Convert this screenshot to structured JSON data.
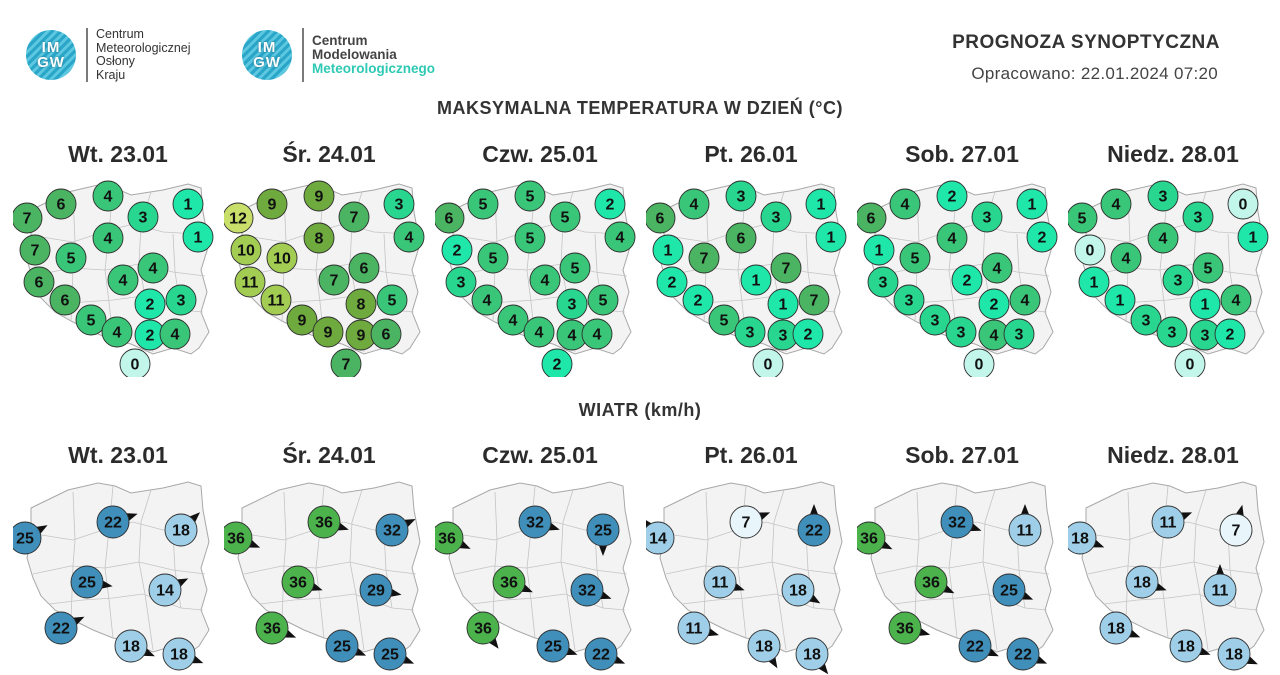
{
  "header": {
    "logo1": {
      "badge": "IM GW",
      "lines": [
        "Centrum",
        "Meteorologicznej",
        "Osłony",
        "Kraju"
      ]
    },
    "logo2": {
      "badge": "IM GW",
      "line1": "Centrum",
      "line2": "Modelowania",
      "line3": "Meteorologicznego"
    },
    "title": "PROGNOZA SYNOPTYCZNA",
    "issued": "Opracowano: 22.01.2024 07:20"
  },
  "temp_section": {
    "title": "MAKSYMALNA TEMPERATURA W DZIEŃ (°C)",
    "days": [
      {
        "label": "Wt. 23.01",
        "values": [
          6,
          4,
          1,
          7,
          3,
          1,
          7,
          5,
          4,
          6,
          4,
          4,
          6,
          2,
          3,
          5,
          4,
          2,
          4,
          0
        ]
      },
      {
        "label": "Śr. 24.01",
        "values": [
          9,
          9,
          3,
          12,
          7,
          4,
          10,
          10,
          8,
          11,
          7,
          6,
          11,
          8,
          5,
          9,
          9,
          9,
          6,
          7
        ]
      },
      {
        "label": "Czw. 25.01",
        "values": [
          5,
          5,
          2,
          6,
          5,
          4,
          2,
          5,
          5,
          3,
          4,
          5,
          4,
          3,
          5,
          4,
          4,
          4,
          4,
          2
        ]
      },
      {
        "label": "Pt. 26.01",
        "values": [
          4,
          3,
          1,
          6,
          3,
          1,
          1,
          7,
          6,
          2,
          1,
          7,
          2,
          1,
          7,
          5,
          3,
          3,
          2,
          0
        ]
      },
      {
        "label": "Sob. 27.01",
        "values": [
          4,
          2,
          1,
          6,
          3,
          2,
          1,
          5,
          4,
          3,
          2,
          4,
          3,
          2,
          4,
          3,
          3,
          4,
          3,
          0
        ]
      },
      {
        "label": "Niedz. 28.01",
        "values": [
          4,
          3,
          0,
          5,
          3,
          1,
          0,
          4,
          4,
          1,
          3,
          5,
          1,
          1,
          4,
          3,
          3,
          3,
          2,
          0
        ]
      }
    ]
  },
  "wind_section": {
    "title": "WIATR (km/h)",
    "days": [
      {
        "label": "Wt. 23.01",
        "values": [
          25,
          22,
          18,
          25,
          14,
          22,
          18,
          18
        ]
      },
      {
        "label": "Śr. 24.01",
        "values": [
          36,
          36,
          32,
          36,
          29,
          36,
          25,
          25
        ]
      },
      {
        "label": "Czw. 25.01",
        "values": [
          36,
          32,
          25,
          36,
          32,
          36,
          25,
          22
        ]
      },
      {
        "label": "Pt. 26.01",
        "values": [
          14,
          7,
          22,
          11,
          18,
          11,
          18,
          18
        ]
      },
      {
        "label": "Sob. 27.01",
        "values": [
          36,
          32,
          11,
          36,
          25,
          36,
          22,
          22
        ]
      },
      {
        "label": "Niedz. 28.01",
        "values": [
          18,
          11,
          7,
          18,
          11,
          18,
          18,
          18
        ]
      }
    ]
  },
  "colors": {
    "map_fill": "#f3f3f3",
    "map_border": "#a8a8a8",
    "wind_36": "#4bb24c",
    "wind_29_32": "#3f8fba",
    "wind_18": "#9fcfe8",
    "wind_7": "#e8f6fb"
  }
}
